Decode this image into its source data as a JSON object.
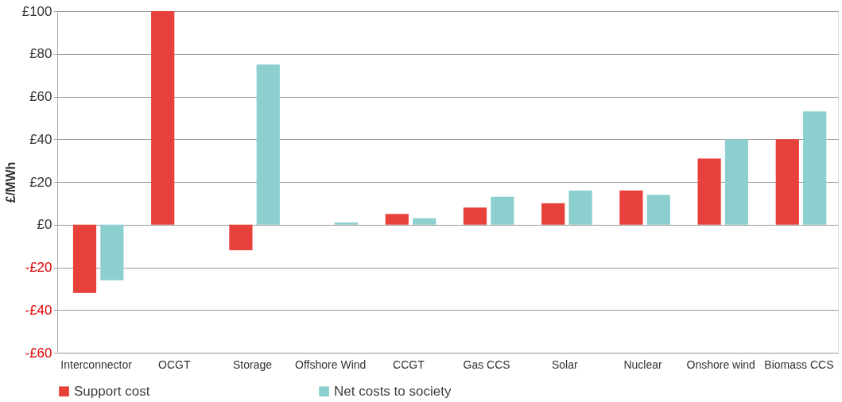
{
  "chart_data": {
    "type": "bar",
    "ylabel": "£/MWh",
    "categories": [
      "Interconnector",
      "OCGT",
      "Storage",
      "Offshore Wind",
      "CCGT",
      "Gas CCS",
      "Solar",
      "Nuclear",
      "Onshore wind",
      "Biomass CCS"
    ],
    "series": [
      {
        "name": "Support cost",
        "color": "#e8403a",
        "values": [
          -32,
          100,
          -12,
          null,
          5,
          8,
          10,
          16,
          31,
          40
        ]
      },
      {
        "name": "Net costs to society",
        "color": "#8dcfcf",
        "values": [
          -26,
          null,
          75,
          1,
          3,
          13,
          16,
          14,
          40,
          53
        ]
      }
    ],
    "ylim": [
      -60,
      100
    ],
    "yticks": [
      {
        "value": -60,
        "label": "-£60"
      },
      {
        "value": -40,
        "label": "-£40"
      },
      {
        "value": -20,
        "label": "-£20"
      },
      {
        "value": 0,
        "label": "£0"
      },
      {
        "value": 20,
        "label": "£20"
      },
      {
        "value": 40,
        "label": "£40"
      },
      {
        "value": 60,
        "label": "£60"
      },
      {
        "value": 80,
        "label": "£80"
      },
      {
        "value": 100,
        "label": "£100"
      }
    ],
    "grid": "y",
    "legend": "bottom"
  }
}
